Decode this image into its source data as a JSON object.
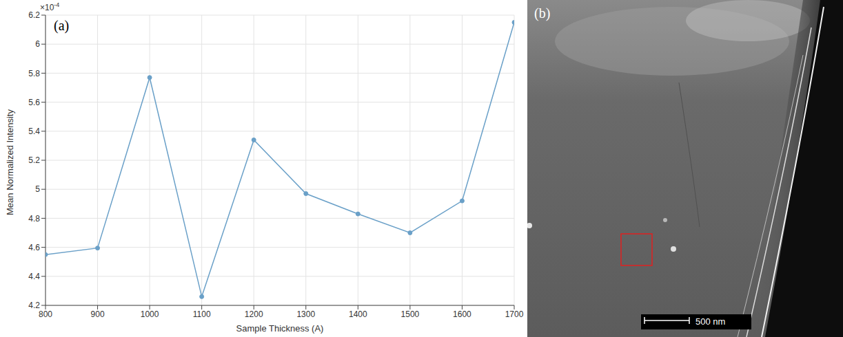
{
  "chart_data": {
    "type": "line",
    "panel_label": "(a)",
    "x_label": "Sample Thickness (A)",
    "y_label": "Mean Normalized Intensity",
    "y_scale_label": {
      "base": "×10",
      "exponent": "-4"
    },
    "x": [
      800,
      900,
      1000,
      1100,
      1200,
      1300,
      1400,
      1500,
      1600,
      1700
    ],
    "values": [
      4.55,
      4.595,
      5.77,
      4.26,
      5.34,
      4.97,
      4.83,
      4.7,
      4.92,
      6.15
    ],
    "color": "#6aa0c8",
    "marker": "circle",
    "line_style": "solid",
    "xlim": [
      800,
      1700
    ],
    "xticks": [
      800,
      900,
      1000,
      1100,
      1200,
      1300,
      1400,
      1500,
      1600,
      1700
    ],
    "ylim": [
      4.2,
      6.2
    ],
    "yticks": [
      4.2,
      4.4,
      4.6,
      4.8,
      5,
      5.2,
      5.4,
      5.6,
      5.8,
      6,
      6.2
    ],
    "grid": true
  },
  "image_panel": {
    "panel_label": "(b)",
    "scale_bar_label": "500 nm"
  }
}
